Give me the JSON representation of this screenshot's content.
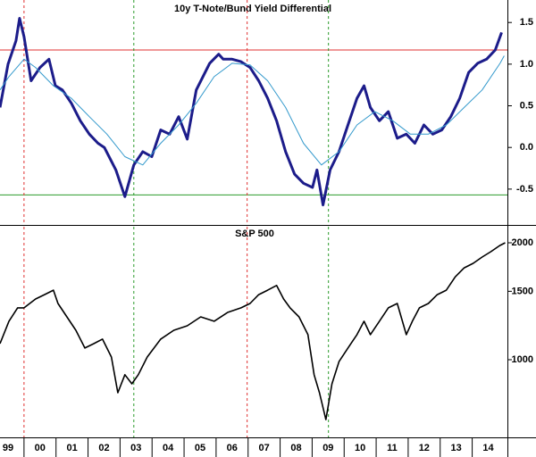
{
  "chart_data": [
    {
      "type": "line",
      "title": "10y T-Note/Bund Yield Differential",
      "xlim": [
        1999.25,
        2015.1
      ],
      "ylim": [
        -0.93,
        1.77
      ],
      "yticks": [
        -0.5,
        {
          "value": 0,
          "label": "0.0"
        },
        0.5,
        {
          "value": 1,
          "label": "1.0"
        },
        1.5
      ],
      "hlines": [
        {
          "value": 1.17,
          "color": "#e03030"
        },
        {
          "value": -0.57,
          "color": "#2a9a2a"
        }
      ],
      "vlines": [
        {
          "value": 2000.0,
          "color": "#e03030"
        },
        {
          "value": 2003.43,
          "color": "#2a9a2a"
        },
        {
          "value": 2006.97,
          "color": "#e03030"
        },
        {
          "value": 2009.51,
          "color": "#2a9a2a"
        }
      ],
      "series": [
        {
          "color": "#1c1c8a",
          "width": 3,
          "x": [
            1999.25,
            1999.5,
            1999.75,
            1999.86,
            2000.0,
            2000.22,
            2000.5,
            2000.78,
            2000.98,
            2001.2,
            2001.48,
            2001.76,
            2002.04,
            2002.31,
            2002.51,
            2002.87,
            2003.15,
            2003.43,
            2003.71,
            2003.99,
            2004.27,
            2004.55,
            2004.83,
            2005.1,
            2005.38,
            2005.8,
            2006.08,
            2006.22,
            2006.5,
            2006.78,
            2007.06,
            2007.33,
            2007.61,
            2007.89,
            2008.17,
            2008.45,
            2008.73,
            2009.01,
            2009.15,
            2009.34,
            2009.56,
            2009.84,
            2010.12,
            2010.4,
            2010.62,
            2010.82,
            2011.1,
            2011.38,
            2011.66,
            2011.94,
            2012.21,
            2012.49,
            2012.77,
            2013.05,
            2013.33,
            2013.61,
            2013.89,
            2014.17,
            2014.45,
            2014.72,
            2014.92
          ],
          "values": [
            0.48,
            1.0,
            1.28,
            1.55,
            1.33,
            0.8,
            0.96,
            1.06,
            0.74,
            0.69,
            0.53,
            0.32,
            0.16,
            0.05,
            0,
            -0.27,
            -0.59,
            -0.21,
            -0.05,
            -0.11,
            0.21,
            0.16,
            0.37,
            0.1,
            0.69,
            1.01,
            1.12,
            1.06,
            1.06,
            1.03,
            0.96,
            0.8,
            0.59,
            0.32,
            -0.05,
            -0.32,
            -0.43,
            -0.48,
            -0.27,
            -0.69,
            -0.27,
            -0.05,
            0.27,
            0.59,
            0.74,
            0.48,
            0.32,
            0.43,
            0.11,
            0.16,
            0.05,
            0.27,
            0.16,
            0.21,
            0.37,
            0.59,
            0.9,
            1.01,
            1.06,
            1.17,
            1.38
          ]
        },
        {
          "color": "#3399cc",
          "width": 1,
          "x": [
            1999.25,
            1999.53,
            2000.0,
            2000.36,
            2000.92,
            2001.48,
            2002.04,
            2002.59,
            2003.15,
            2003.71,
            2004.27,
            2004.83,
            2005.38,
            2005.94,
            2006.5,
            2007.06,
            2007.61,
            2008.17,
            2008.73,
            2009.29,
            2009.84,
            2010.4,
            2010.96,
            2011.52,
            2012.07,
            2012.63,
            2013.19,
            2013.75,
            2014.31,
            2014.87,
            2015.0
          ],
          "values": [
            0.69,
            0.85,
            1.06,
            0.96,
            0.74,
            0.59,
            0.37,
            0.16,
            -0.11,
            -0.21,
            0.05,
            0.27,
            0.53,
            0.85,
            1.01,
            0.99,
            0.8,
            0.48,
            0.05,
            -0.21,
            -0.05,
            0.27,
            0.43,
            0.32,
            0.16,
            0.16,
            0.27,
            0.48,
            0.69,
            1.01,
            1.1
          ]
        }
      ]
    },
    {
      "type": "line",
      "title": "S&P 500",
      "log_scale": true,
      "xlim": [
        1999.25,
        2015.1
      ],
      "ylim": [
        631,
        2200
      ],
      "yticks": [
        1000,
        1500,
        2000
      ],
      "xticks": [
        {
          "value": 1999.5,
          "label": "99"
        },
        {
          "value": 2000.5,
          "label": "00"
        },
        {
          "value": 2001.5,
          "label": "01"
        },
        {
          "value": 2002.5,
          "label": "02"
        },
        {
          "value": 2003.5,
          "label": "03"
        },
        {
          "value": 2004.5,
          "label": "04"
        },
        {
          "value": 2005.5,
          "label": "05"
        },
        {
          "value": 2006.5,
          "label": "06"
        },
        {
          "value": 2007.5,
          "label": "07"
        },
        {
          "value": 2008.5,
          "label": "08"
        },
        {
          "value": 2009.5,
          "label": "09"
        },
        {
          "value": 2010.5,
          "label": "10"
        },
        {
          "value": 2011.5,
          "label": "11"
        },
        {
          "value": 2012.5,
          "label": "12"
        },
        {
          "value": 2013.5,
          "label": "13"
        },
        {
          "value": 2014.5,
          "label": "14"
        }
      ],
      "vlines": [
        {
          "value": 2000.0,
          "color": "#e03030"
        },
        {
          "value": 2003.43,
          "color": "#2a9a2a"
        },
        {
          "value": 2006.97,
          "color": "#e03030"
        },
        {
          "value": 2009.51,
          "color": "#2a9a2a"
        }
      ],
      "series": [
        {
          "color": "#000000",
          "width": 1.6,
          "x": [
            1999.25,
            1999.53,
            1999.8,
            2000.0,
            2000.36,
            2000.64,
            2000.92,
            2001.06,
            2001.34,
            2001.62,
            2001.9,
            2002.18,
            2002.45,
            2002.73,
            2002.93,
            2003.15,
            2003.37,
            2003.57,
            2003.85,
            2004.27,
            2004.68,
            2005.1,
            2005.52,
            2005.94,
            2006.36,
            2006.78,
            2007.06,
            2007.33,
            2007.61,
            2007.89,
            2008.11,
            2008.31,
            2008.59,
            2008.87,
            2009.06,
            2009.23,
            2009.43,
            2009.62,
            2009.84,
            2010.12,
            2010.4,
            2010.62,
            2010.82,
            2011.1,
            2011.38,
            2011.66,
            2011.94,
            2012.13,
            2012.35,
            2012.63,
            2012.91,
            2013.19,
            2013.47,
            2013.75,
            2014.03,
            2014.31,
            2014.58,
            2014.86,
            2015.03
          ],
          "values": [
            1100,
            1256,
            1360,
            1360,
            1433,
            1471,
            1510,
            1396,
            1289,
            1191,
            1072,
            1100,
            1130,
            1016,
            822,
            915,
            867,
            915,
            1016,
            1130,
            1191,
            1223,
            1289,
            1256,
            1324,
            1360,
            1396,
            1471,
            1510,
            1553,
            1433,
            1360,
            1289,
            1160,
            915,
            822,
            701,
            867,
            989,
            1072,
            1160,
            1256,
            1160,
            1256,
            1360,
            1396,
            1160,
            1256,
            1360,
            1396,
            1471,
            1510,
            1634,
            1724,
            1771,
            1838,
            1897,
            1968,
            2000
          ]
        }
      ]
    }
  ]
}
